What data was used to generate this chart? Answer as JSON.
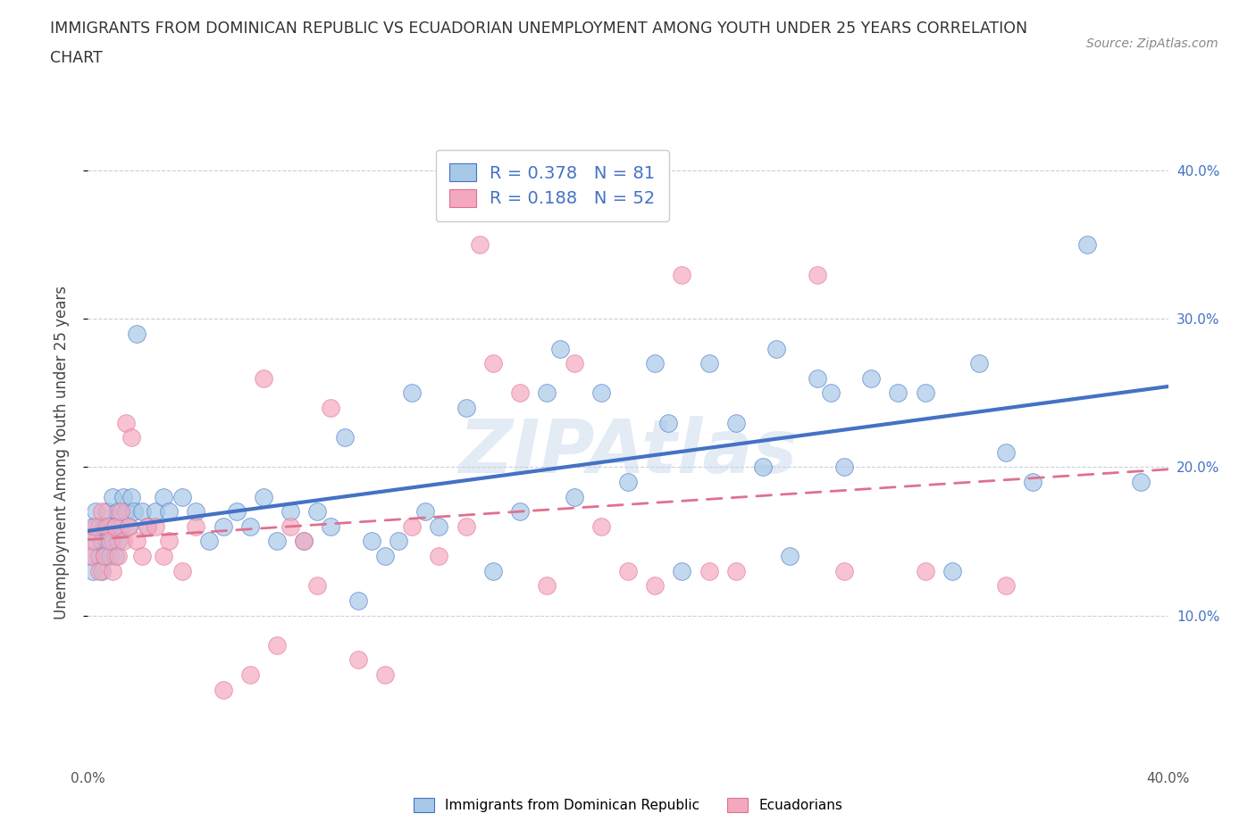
{
  "title_line1": "IMMIGRANTS FROM DOMINICAN REPUBLIC VS ECUADORIAN UNEMPLOYMENT AMONG YOUTH UNDER 25 YEARS CORRELATION",
  "title_line2": "CHART",
  "source": "Source: ZipAtlas.com",
  "ylabel": "Unemployment Among Youth under 25 years",
  "xlim": [
    0.0,
    0.4
  ],
  "ylim": [
    0.0,
    0.42
  ],
  "R_blue": 0.378,
  "N_blue": 81,
  "R_pink": 0.188,
  "N_pink": 52,
  "blue_color": "#A8C8E8",
  "pink_color": "#F4A8BE",
  "blue_line_color": "#4472C4",
  "pink_line_color": "#E07090",
  "legend_label_blue": "Immigrants from Dominican Republic",
  "legend_label_pink": "Ecuadorians",
  "watermark": "ZIPAtlas",
  "blue_scatter_x": [
    0.001,
    0.002,
    0.002,
    0.003,
    0.003,
    0.004,
    0.004,
    0.005,
    0.005,
    0.006,
    0.006,
    0.007,
    0.007,
    0.008,
    0.008,
    0.009,
    0.009,
    0.01,
    0.01,
    0.011,
    0.011,
    0.012,
    0.013,
    0.014,
    0.015,
    0.016,
    0.017,
    0.018,
    0.02,
    0.022,
    0.025,
    0.028,
    0.03,
    0.035,
    0.04,
    0.045,
    0.05,
    0.055,
    0.06,
    0.065,
    0.07,
    0.075,
    0.08,
    0.085,
    0.09,
    0.095,
    0.1,
    0.105,
    0.11,
    0.115,
    0.12,
    0.125,
    0.13,
    0.14,
    0.15,
    0.16,
    0.17,
    0.175,
    0.18,
    0.19,
    0.2,
    0.21,
    0.215,
    0.22,
    0.23,
    0.24,
    0.25,
    0.255,
    0.26,
    0.27,
    0.275,
    0.28,
    0.29,
    0.3,
    0.31,
    0.32,
    0.33,
    0.34,
    0.35,
    0.37,
    0.39
  ],
  "blue_scatter_y": [
    0.14,
    0.16,
    0.13,
    0.15,
    0.17,
    0.14,
    0.16,
    0.15,
    0.13,
    0.16,
    0.14,
    0.15,
    0.17,
    0.14,
    0.16,
    0.15,
    0.18,
    0.14,
    0.16,
    0.17,
    0.15,
    0.16,
    0.18,
    0.17,
    0.16,
    0.18,
    0.17,
    0.29,
    0.17,
    0.16,
    0.17,
    0.18,
    0.17,
    0.18,
    0.17,
    0.15,
    0.16,
    0.17,
    0.16,
    0.18,
    0.15,
    0.17,
    0.15,
    0.17,
    0.16,
    0.22,
    0.11,
    0.15,
    0.14,
    0.15,
    0.25,
    0.17,
    0.16,
    0.24,
    0.13,
    0.17,
    0.25,
    0.28,
    0.18,
    0.25,
    0.19,
    0.27,
    0.23,
    0.13,
    0.27,
    0.23,
    0.2,
    0.28,
    0.14,
    0.26,
    0.25,
    0.2,
    0.26,
    0.25,
    0.25,
    0.13,
    0.27,
    0.21,
    0.19,
    0.35,
    0.19
  ],
  "pink_scatter_x": [
    0.001,
    0.002,
    0.003,
    0.004,
    0.005,
    0.006,
    0.007,
    0.008,
    0.009,
    0.01,
    0.011,
    0.012,
    0.013,
    0.014,
    0.015,
    0.016,
    0.018,
    0.02,
    0.022,
    0.025,
    0.028,
    0.03,
    0.035,
    0.04,
    0.05,
    0.06,
    0.065,
    0.07,
    0.075,
    0.08,
    0.085,
    0.09,
    0.1,
    0.11,
    0.12,
    0.13,
    0.14,
    0.145,
    0.15,
    0.16,
    0.17,
    0.18,
    0.19,
    0.2,
    0.21,
    0.22,
    0.23,
    0.24,
    0.27,
    0.28,
    0.31,
    0.34
  ],
  "pink_scatter_y": [
    0.14,
    0.15,
    0.16,
    0.13,
    0.17,
    0.14,
    0.16,
    0.15,
    0.13,
    0.16,
    0.14,
    0.17,
    0.15,
    0.23,
    0.16,
    0.22,
    0.15,
    0.14,
    0.16,
    0.16,
    0.14,
    0.15,
    0.13,
    0.16,
    0.05,
    0.06,
    0.26,
    0.08,
    0.16,
    0.15,
    0.12,
    0.24,
    0.07,
    0.06,
    0.16,
    0.14,
    0.16,
    0.35,
    0.27,
    0.25,
    0.12,
    0.27,
    0.16,
    0.13,
    0.12,
    0.33,
    0.13,
    0.13,
    0.33,
    0.13,
    0.13,
    0.12
  ]
}
